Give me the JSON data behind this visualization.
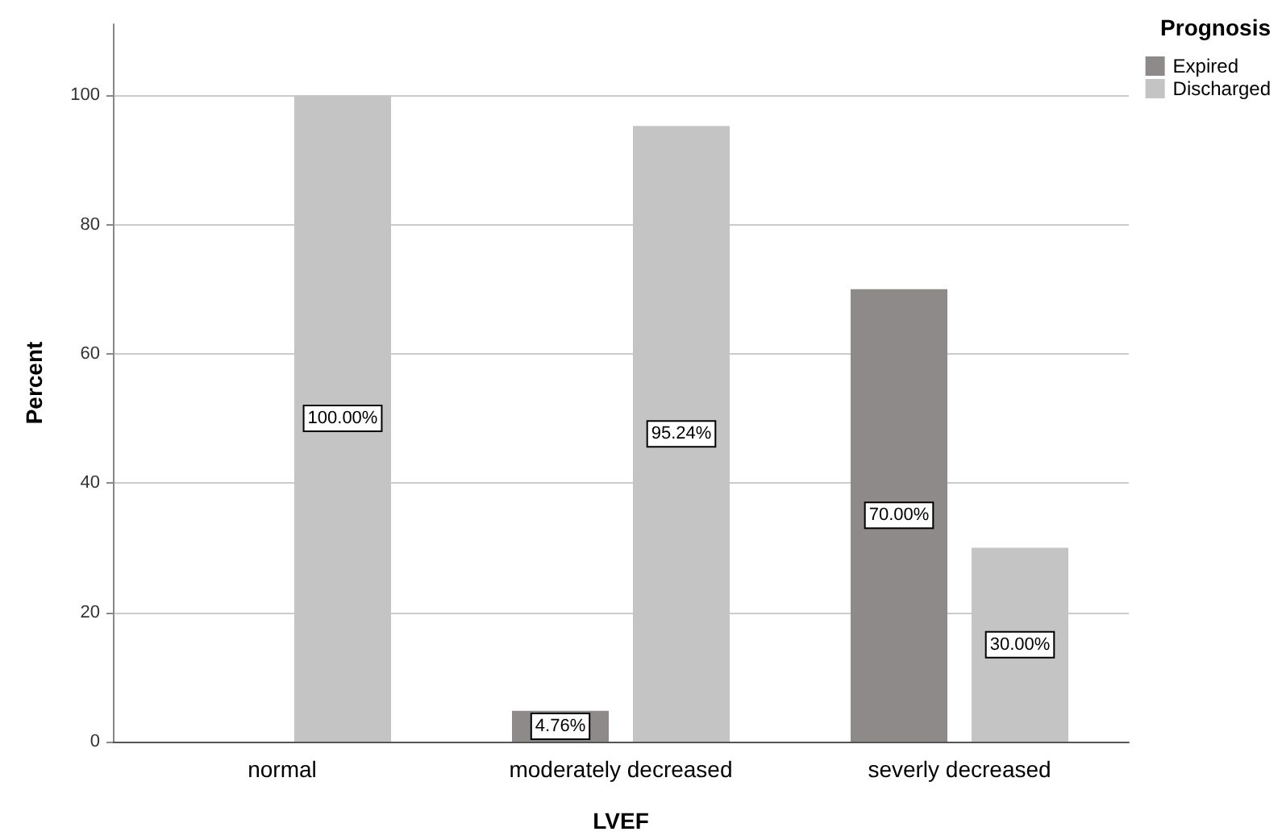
{
  "chart_data": {
    "type": "bar",
    "xlabel": "LVEF",
    "ylabel": "Percent",
    "legend_title": "Prognosis",
    "categories": [
      "normal",
      "moderately decreased",
      "severly decreased"
    ],
    "series": [
      {
        "name": "Expired",
        "color": "#8f8a8a",
        "values": [
          null,
          4.76,
          70
        ],
        "value_labels": [
          null,
          "4.76%",
          "70.00%"
        ]
      },
      {
        "name": "Discharged",
        "color": "#c4c4c4",
        "values": [
          100,
          95.24,
          30
        ],
        "value_labels": [
          "100.00%",
          "95.24%",
          "30.00%"
        ]
      }
    ],
    "ylim": [
      0,
      111
    ],
    "yticks": [
      0,
      20,
      40,
      60,
      80,
      100
    ],
    "grid": "y",
    "legend": "top right"
  }
}
